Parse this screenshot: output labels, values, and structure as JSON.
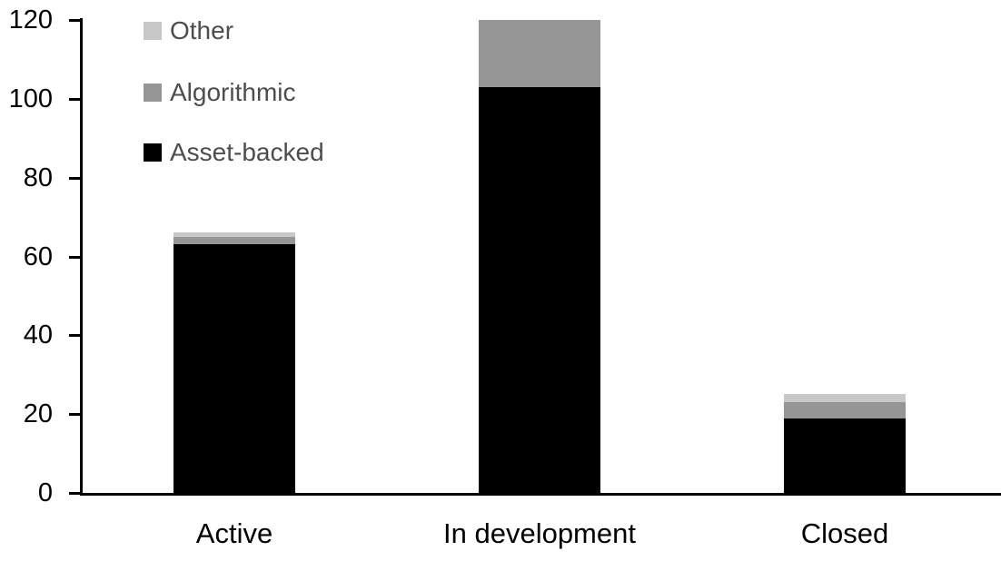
{
  "chart_data": {
    "type": "bar",
    "stacked": true,
    "title": "",
    "xlabel": "",
    "ylabel": "",
    "categories": [
      "Active",
      "In development",
      "Closed"
    ],
    "series": [
      {
        "name": "Asset-backed",
        "color": "#000000",
        "values": [
          63,
          103,
          19
        ]
      },
      {
        "name": "Algorithmic",
        "color": "#969696",
        "values": [
          2,
          17,
          4
        ]
      },
      {
        "name": "Other",
        "color": "#c8c8c8",
        "values": [
          1,
          0,
          2
        ]
      }
    ],
    "totals": [
      66,
      120,
      25
    ],
    "ylim": [
      0,
      120
    ],
    "yticks": [
      0,
      20,
      40,
      60,
      80,
      100,
      120
    ],
    "grid": false,
    "legend_position": "top-left",
    "legend_order": [
      "Other",
      "Algorithmic",
      "Asset-backed"
    ],
    "colors": {
      "axis": "#000000",
      "tick_label": "#000000",
      "x_label": "#000000",
      "legend_text": "#4d4d4d",
      "background": "#ffffff"
    }
  }
}
